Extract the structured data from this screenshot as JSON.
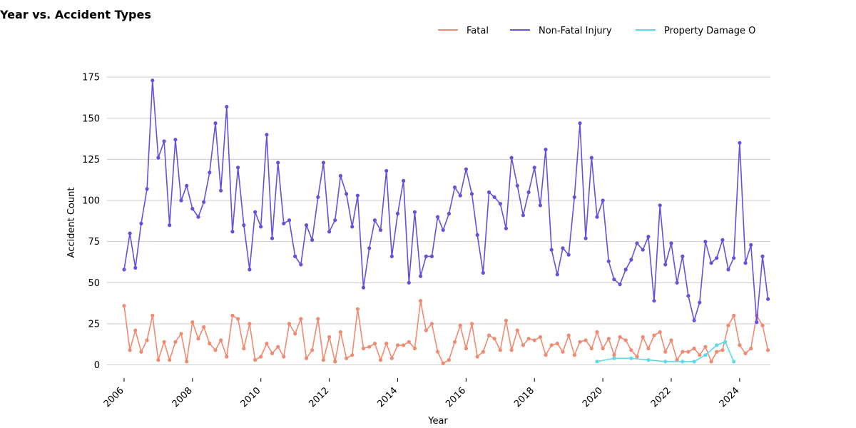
{
  "chart_data": {
    "type": "line",
    "title": "Year vs. Accident Types",
    "xlabel": "Year",
    "ylabel": "Accident Count",
    "x_ticks": [
      "2006",
      "2008",
      "2010",
      "2012",
      "2014",
      "2016",
      "2018",
      "2020",
      "2022",
      "2024"
    ],
    "y_ticks": [
      "0",
      "25",
      "50",
      "75",
      "100",
      "125",
      "150",
      "175"
    ],
    "xlim": [
      2005.5,
      2024.9
    ],
    "ylim": [
      -8,
      182
    ],
    "grid": "horizontal",
    "legend": {
      "placement": "top-right"
    },
    "series": [
      {
        "name": "Fatal",
        "color": "#f08a70",
        "points": [
          [
            2006.0,
            36
          ],
          [
            2006.17,
            9
          ],
          [
            2006.33,
            21
          ],
          [
            2006.5,
            8
          ],
          [
            2006.67,
            15
          ],
          [
            2006.83,
            30
          ],
          [
            2007.0,
            3
          ],
          [
            2007.17,
            14
          ],
          [
            2007.33,
            3
          ],
          [
            2007.5,
            14
          ],
          [
            2007.67,
            19
          ],
          [
            2007.83,
            2
          ],
          [
            2008.0,
            26
          ],
          [
            2008.17,
            16
          ],
          [
            2008.33,
            23
          ],
          [
            2008.5,
            13
          ],
          [
            2008.67,
            9
          ],
          [
            2008.83,
            15
          ],
          [
            2009.0,
            5
          ],
          [
            2009.17,
            30
          ],
          [
            2009.33,
            28
          ],
          [
            2009.5,
            10
          ],
          [
            2009.67,
            25
          ],
          [
            2009.83,
            3
          ],
          [
            2010.0,
            5
          ],
          [
            2010.17,
            13
          ],
          [
            2010.33,
            7
          ],
          [
            2010.5,
            11
          ],
          [
            2010.67,
            5
          ],
          [
            2010.83,
            25
          ],
          [
            2011.0,
            19
          ],
          [
            2011.17,
            28
          ],
          [
            2011.33,
            4
          ],
          [
            2011.5,
            9
          ],
          [
            2011.67,
            28
          ],
          [
            2011.83,
            3
          ],
          [
            2012.0,
            17
          ],
          [
            2012.17,
            2
          ],
          [
            2012.33,
            20
          ],
          [
            2012.5,
            4
          ],
          [
            2012.67,
            6
          ],
          [
            2012.83,
            34
          ],
          [
            2013.0,
            10
          ],
          [
            2013.17,
            11
          ],
          [
            2013.33,
            13
          ],
          [
            2013.5,
            3
          ],
          [
            2013.67,
            13
          ],
          [
            2013.83,
            4
          ],
          [
            2014.0,
            12
          ],
          [
            2014.17,
            12
          ],
          [
            2014.33,
            14
          ],
          [
            2014.5,
            10
          ],
          [
            2014.67,
            39
          ],
          [
            2014.83,
            21
          ],
          [
            2015.0,
            25
          ],
          [
            2015.17,
            8
          ],
          [
            2015.33,
            1
          ],
          [
            2015.5,
            3
          ],
          [
            2015.67,
            14
          ],
          [
            2015.83,
            24
          ],
          [
            2016.0,
            10
          ],
          [
            2016.17,
            25
          ],
          [
            2016.33,
            5
          ],
          [
            2016.5,
            8
          ],
          [
            2016.67,
            18
          ],
          [
            2016.83,
            16
          ],
          [
            2017.0,
            9
          ],
          [
            2017.17,
            27
          ],
          [
            2017.33,
            9
          ],
          [
            2017.5,
            21
          ],
          [
            2017.67,
            12
          ],
          [
            2017.83,
            16
          ],
          [
            2018.0,
            15
          ],
          [
            2018.17,
            17
          ],
          [
            2018.33,
            6
          ],
          [
            2018.5,
            12
          ],
          [
            2018.67,
            13
          ],
          [
            2018.83,
            8
          ],
          [
            2019.0,
            18
          ],
          [
            2019.17,
            6
          ],
          [
            2019.33,
            14
          ],
          [
            2019.5,
            15
          ],
          [
            2019.67,
            10
          ],
          [
            2019.83,
            20
          ],
          [
            2020.0,
            10
          ],
          [
            2020.17,
            16
          ],
          [
            2020.33,
            6
          ],
          [
            2020.5,
            17
          ],
          [
            2020.67,
            15
          ],
          [
            2020.83,
            9
          ],
          [
            2021.0,
            5
          ],
          [
            2021.17,
            17
          ],
          [
            2021.33,
            10
          ],
          [
            2021.5,
            18
          ],
          [
            2021.67,
            20
          ],
          [
            2021.83,
            8
          ],
          [
            2022.0,
            15
          ],
          [
            2022.17,
            3
          ],
          [
            2022.33,
            8
          ],
          [
            2022.5,
            8
          ],
          [
            2022.67,
            10
          ],
          [
            2022.83,
            6
          ],
          [
            2023.0,
            11
          ],
          [
            2023.17,
            2
          ],
          [
            2023.33,
            8
          ],
          [
            2023.5,
            9
          ],
          [
            2023.67,
            24
          ],
          [
            2023.83,
            30
          ],
          [
            2024.0,
            12
          ],
          [
            2024.17,
            7
          ],
          [
            2024.33,
            10
          ],
          [
            2024.5,
            30
          ],
          [
            2024.67,
            24
          ],
          [
            2024.83,
            9
          ]
        ]
      },
      {
        "name": "Non-Fatal Injury",
        "color": "#6a4fd8",
        "points": [
          [
            2006.0,
            58
          ],
          [
            2006.17,
            80
          ],
          [
            2006.33,
            59
          ],
          [
            2006.5,
            86
          ],
          [
            2006.67,
            107
          ],
          [
            2006.83,
            173
          ],
          [
            2007.0,
            126
          ],
          [
            2007.17,
            136
          ],
          [
            2007.33,
            85
          ],
          [
            2007.5,
            137
          ],
          [
            2007.67,
            100
          ],
          [
            2007.83,
            109
          ],
          [
            2008.0,
            95
          ],
          [
            2008.17,
            90
          ],
          [
            2008.33,
            99
          ],
          [
            2008.5,
            117
          ],
          [
            2008.67,
            147
          ],
          [
            2008.83,
            106
          ],
          [
            2009.0,
            157
          ],
          [
            2009.17,
            81
          ],
          [
            2009.33,
            120
          ],
          [
            2009.5,
            85
          ],
          [
            2009.67,
            58
          ],
          [
            2009.83,
            93
          ],
          [
            2010.0,
            84
          ],
          [
            2010.17,
            140
          ],
          [
            2010.33,
            77
          ],
          [
            2010.5,
            123
          ],
          [
            2010.67,
            86
          ],
          [
            2010.83,
            88
          ],
          [
            2011.0,
            66
          ],
          [
            2011.17,
            61
          ],
          [
            2011.33,
            85
          ],
          [
            2011.5,
            76
          ],
          [
            2011.67,
            102
          ],
          [
            2011.83,
            123
          ],
          [
            2012.0,
            81
          ],
          [
            2012.17,
            88
          ],
          [
            2012.33,
            115
          ],
          [
            2012.5,
            104
          ],
          [
            2012.67,
            84
          ],
          [
            2012.83,
            103
          ],
          [
            2013.0,
            47
          ],
          [
            2013.17,
            71
          ],
          [
            2013.33,
            88
          ],
          [
            2013.5,
            82
          ],
          [
            2013.67,
            118
          ],
          [
            2013.83,
            66
          ],
          [
            2014.0,
            92
          ],
          [
            2014.17,
            112
          ],
          [
            2014.33,
            50
          ],
          [
            2014.5,
            93
          ],
          [
            2014.67,
            54
          ],
          [
            2014.83,
            66
          ],
          [
            2015.0,
            66
          ],
          [
            2015.17,
            90
          ],
          [
            2015.33,
            82
          ],
          [
            2015.5,
            92
          ],
          [
            2015.67,
            108
          ],
          [
            2015.83,
            103
          ],
          [
            2016.0,
            119
          ],
          [
            2016.17,
            104
          ],
          [
            2016.33,
            79
          ],
          [
            2016.5,
            56
          ],
          [
            2016.67,
            105
          ],
          [
            2016.83,
            102
          ],
          [
            2017.0,
            98
          ],
          [
            2017.17,
            83
          ],
          [
            2017.33,
            126
          ],
          [
            2017.5,
            109
          ],
          [
            2017.67,
            91
          ],
          [
            2017.83,
            105
          ],
          [
            2018.0,
            120
          ],
          [
            2018.17,
            97
          ],
          [
            2018.33,
            131
          ],
          [
            2018.5,
            70
          ],
          [
            2018.67,
            55
          ],
          [
            2018.83,
            71
          ],
          [
            2019.0,
            67
          ],
          [
            2019.17,
            102
          ],
          [
            2019.33,
            147
          ],
          [
            2019.5,
            77
          ],
          [
            2019.67,
            126
          ],
          [
            2019.83,
            90
          ],
          [
            2020.0,
            100
          ],
          [
            2020.17,
            63
          ],
          [
            2020.33,
            52
          ],
          [
            2020.5,
            49
          ],
          [
            2020.67,
            58
          ],
          [
            2020.83,
            64
          ],
          [
            2021.0,
            74
          ],
          [
            2021.17,
            70
          ],
          [
            2021.33,
            78
          ],
          [
            2021.5,
            39
          ],
          [
            2021.67,
            97
          ],
          [
            2021.83,
            61
          ],
          [
            2022.0,
            74
          ],
          [
            2022.17,
            50
          ],
          [
            2022.33,
            66
          ],
          [
            2022.5,
            42
          ],
          [
            2022.67,
            27
          ],
          [
            2022.83,
            38
          ],
          [
            2023.0,
            75
          ],
          [
            2023.17,
            62
          ],
          [
            2023.33,
            65
          ],
          [
            2023.5,
            76
          ],
          [
            2023.67,
            58
          ],
          [
            2023.83,
            65
          ],
          [
            2024.0,
            135
          ],
          [
            2024.17,
            62
          ],
          [
            2024.33,
            73
          ],
          [
            2024.5,
            26
          ],
          [
            2024.67,
            66
          ],
          [
            2024.83,
            40
          ]
        ]
      },
      {
        "name": "Property Damage O",
        "color": "#5adbe8",
        "points": [
          [
            2019.83,
            2
          ],
          [
            2020.33,
            4
          ],
          [
            2020.83,
            4
          ],
          [
            2021.33,
            3
          ],
          [
            2021.83,
            2
          ],
          [
            2022.33,
            2
          ],
          [
            2022.67,
            2
          ],
          [
            2023.0,
            6
          ],
          [
            2023.33,
            12
          ],
          [
            2023.58,
            14
          ],
          [
            2023.83,
            2
          ]
        ]
      }
    ]
  }
}
